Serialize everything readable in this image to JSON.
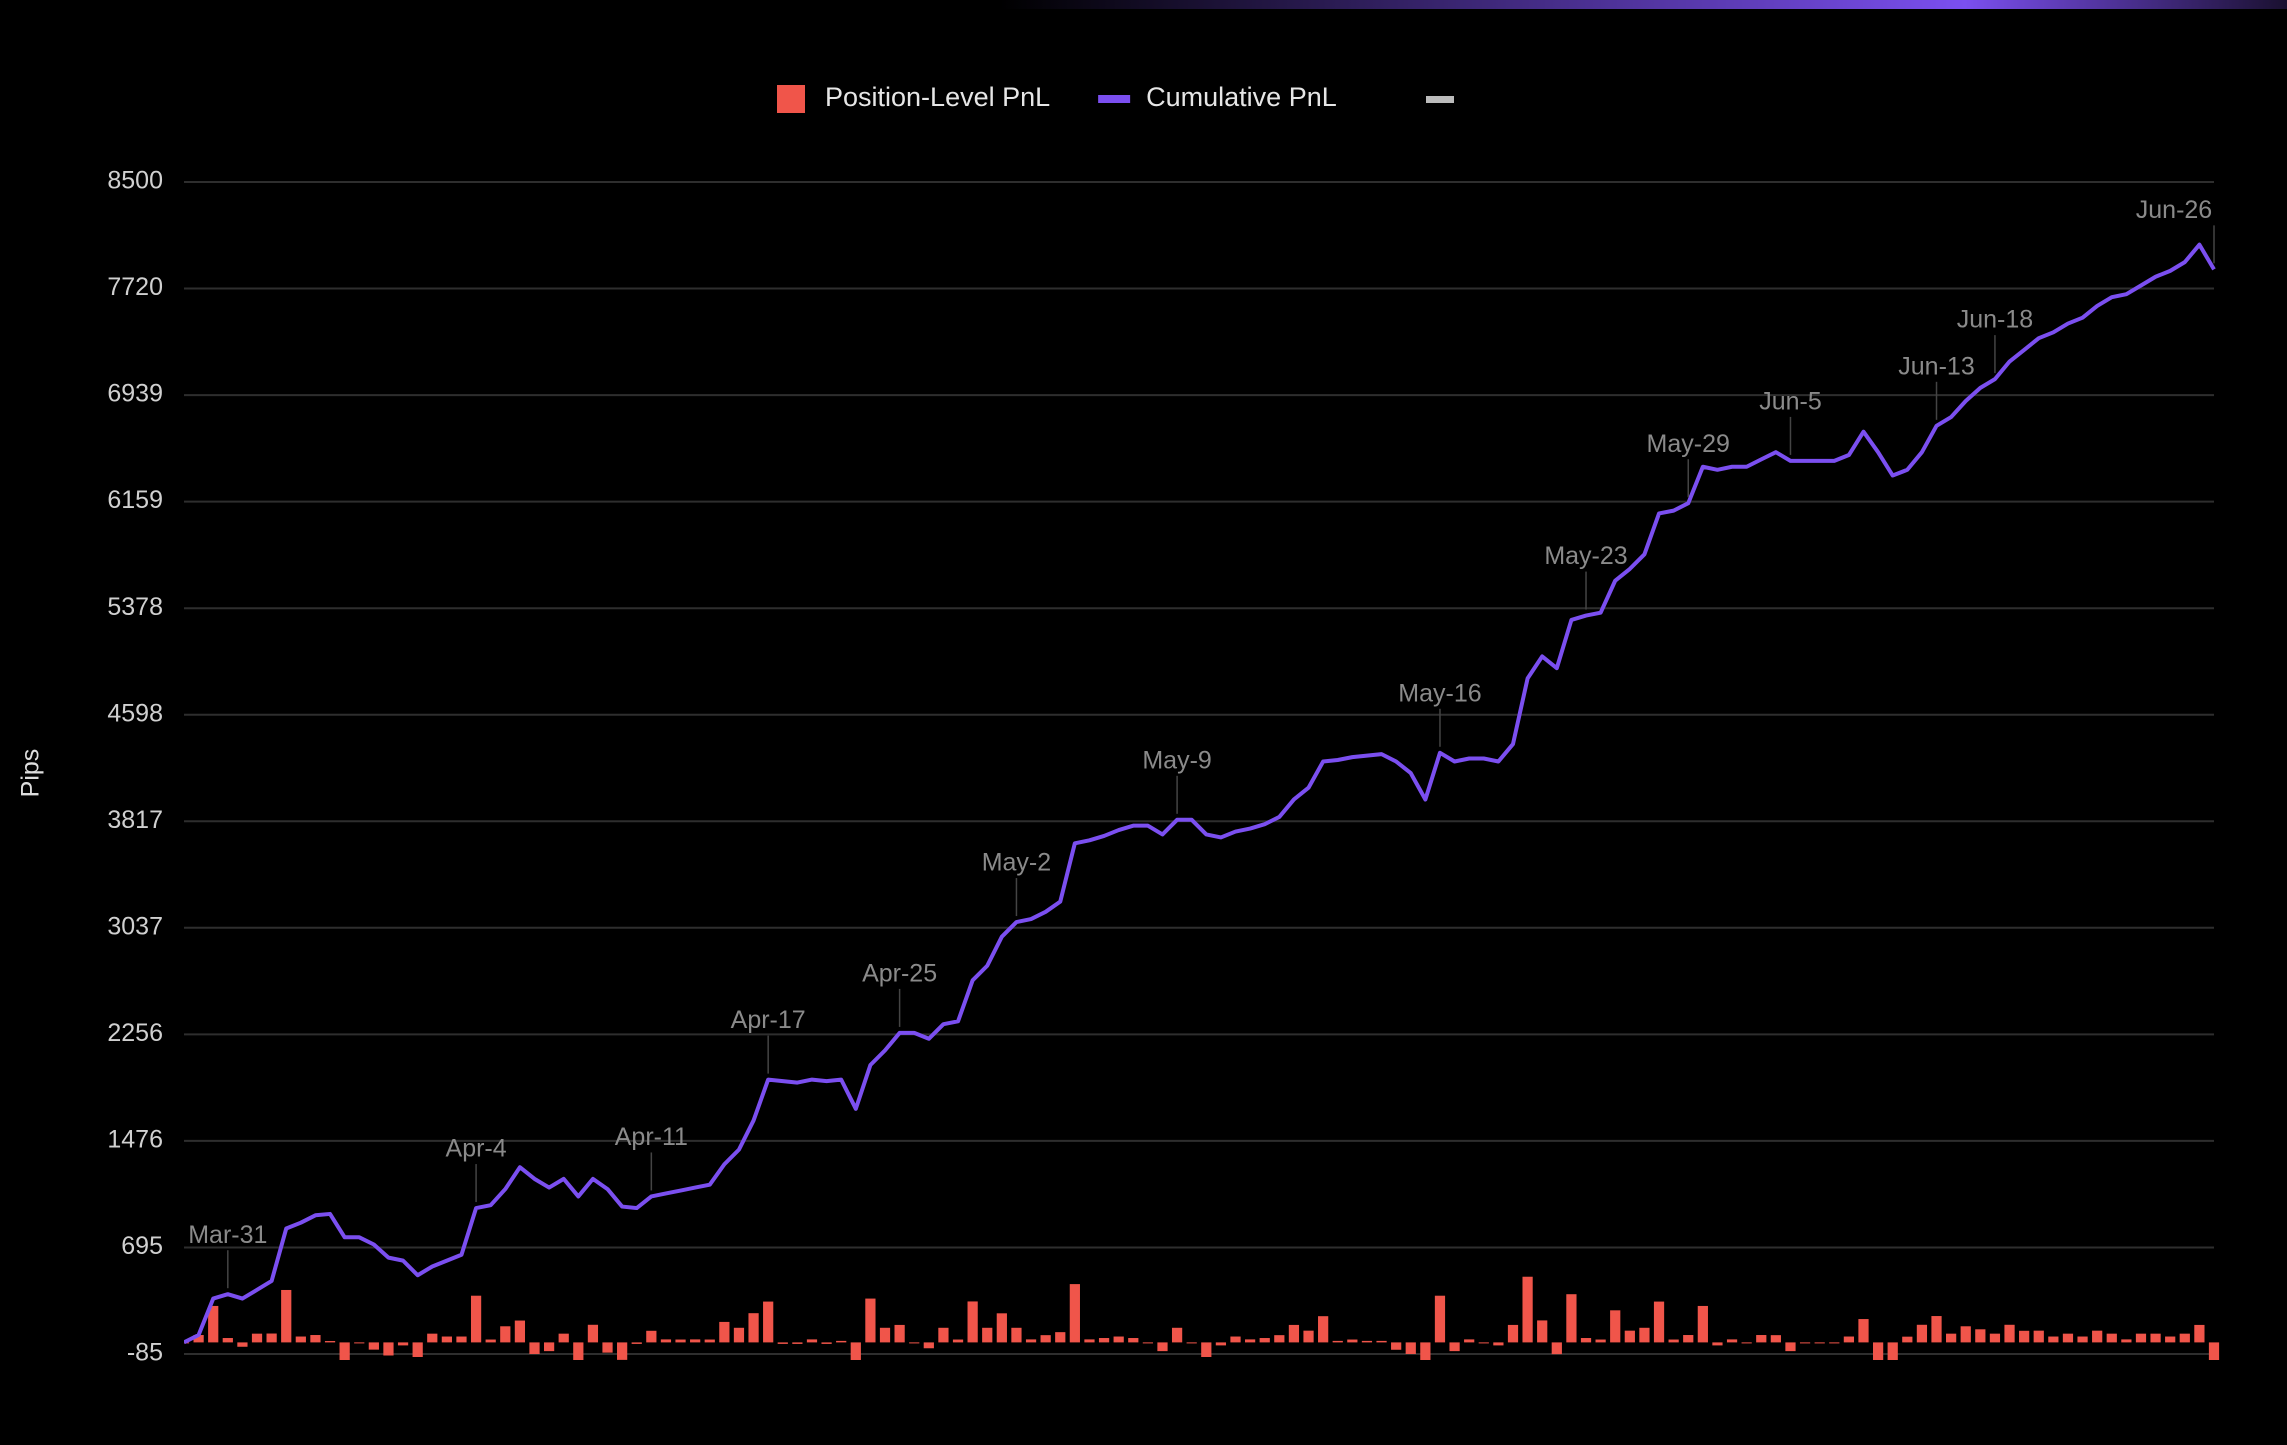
{
  "chart_data": {
    "type": "combo",
    "y_label": "Pips",
    "ylim": [
      -85,
      8500
    ],
    "yticks": [
      -85,
      695,
      1476,
      2256,
      3037,
      3817,
      4598,
      5378,
      6159,
      6939,
      7720,
      8500
    ],
    "grid": true,
    "legend": "top",
    "series": [
      {
        "name": "Position-Level PnL",
        "type": "bar",
        "color": "#f0554a",
        "values": [
          0,
          54,
          267,
          32,
          -32,
          64,
          65,
          384,
          43,
          54,
          10,
          -171,
          0,
          -53,
          -96,
          -22,
          -107,
          64,
          43,
          43,
          342,
          21,
          118,
          160,
          -85,
          -64,
          64,
          -129,
          129,
          -75,
          -128,
          -11,
          85,
          22,
          21,
          22,
          21,
          150,
          107,
          214,
          299,
          -11,
          -11,
          22,
          -11,
          11,
          -214,
          321,
          107,
          128,
          0,
          -43,
          107,
          21,
          300,
          107,
          213,
          107,
          22,
          53,
          75,
          427,
          22,
          32,
          43,
          32,
          0,
          -64,
          107,
          0,
          -107,
          -22,
          43,
          22,
          32,
          53,
          128,
          86,
          192,
          11,
          21,
          11,
          11,
          -54,
          -85,
          -193,
          342,
          -64,
          22,
          0,
          -22,
          128,
          481,
          161,
          -86,
          353,
          32,
          21,
          235,
          86,
          107,
          299,
          21,
          54,
          267,
          -22,
          22,
          0,
          54,
          53,
          -64,
          0,
          0,
          0,
          43,
          171,
          -150,
          -171,
          42,
          129,
          193,
          64,
          118,
          96,
          64,
          129,
          85,
          86,
          43,
          64,
          43,
          86,
          64,
          22,
          64,
          64,
          43,
          64,
          128,
          -181
        ]
      },
      {
        "name": "Cumulative PnL",
        "type": "line",
        "color": "#7b4ff0",
        "values": [
          0,
          54,
          321,
          353,
          321,
          385,
          450,
          834,
          877,
          931,
          941,
          770,
          770,
          717,
          621,
          599,
          492,
          556,
          599,
          642,
          984,
          1005,
          1123,
          1283,
          1198,
          1134,
          1198,
          1069,
          1198,
          1123,
          995,
          984,
          1069,
          1091,
          1112,
          1134,
          1155,
          1305,
          1412,
          1626,
          1925,
          1914,
          1903,
          1925,
          1914,
          1925,
          1711,
          2032,
          2139,
          2267,
          2267,
          2224,
          2331,
          2352,
          2652,
          2759,
          2972,
          3079,
          3101,
          3154,
          3229,
          3656,
          3678,
          3710,
          3753,
          3785,
          3785,
          3721,
          3828,
          3828,
          3721,
          3699,
          3742,
          3764,
          3796,
          3849,
          3977,
          4063,
          4255,
          4266,
          4287,
          4298,
          4309,
          4255,
          4170,
          3977,
          4319,
          4255,
          4277,
          4277,
          4255,
          4383,
          4864,
          5025,
          4939,
          5292,
          5324,
          5345,
          5580,
          5666,
          5773,
          6072,
          6093,
          6147,
          6414,
          6392,
          6414,
          6414,
          6468,
          6521,
          6457,
          6457,
          6457,
          6457,
          6500,
          6671,
          6521,
          6350,
          6392,
          6521,
          6714,
          6778,
          6896,
          6992,
          7056,
          7185,
          7270,
          7356,
          7399,
          7463,
          7506,
          7592,
          7656,
          7678,
          7742,
          7806,
          7849,
          7913,
          8041,
          7860
        ]
      }
    ],
    "annotations": [
      {
        "x": 3,
        "label": "Mar-31"
      },
      {
        "x": 20,
        "label": "Apr-4"
      },
      {
        "x": 32,
        "label": "Apr-11"
      },
      {
        "x": 40,
        "label": "Apr-17"
      },
      {
        "x": 49,
        "label": "Apr-25"
      },
      {
        "x": 57,
        "label": "May-2"
      },
      {
        "x": 68,
        "label": "May-9"
      },
      {
        "x": 86,
        "label": "May-16"
      },
      {
        "x": 96,
        "label": "May-23"
      },
      {
        "x": 103,
        "label": "May-29"
      },
      {
        "x": 110,
        "label": "Jun-5"
      },
      {
        "x": 120,
        "label": "Jun-13"
      },
      {
        "x": 124,
        "label": "Jun-18"
      },
      {
        "x": 139,
        "label": "Jun-26"
      }
    ]
  }
}
